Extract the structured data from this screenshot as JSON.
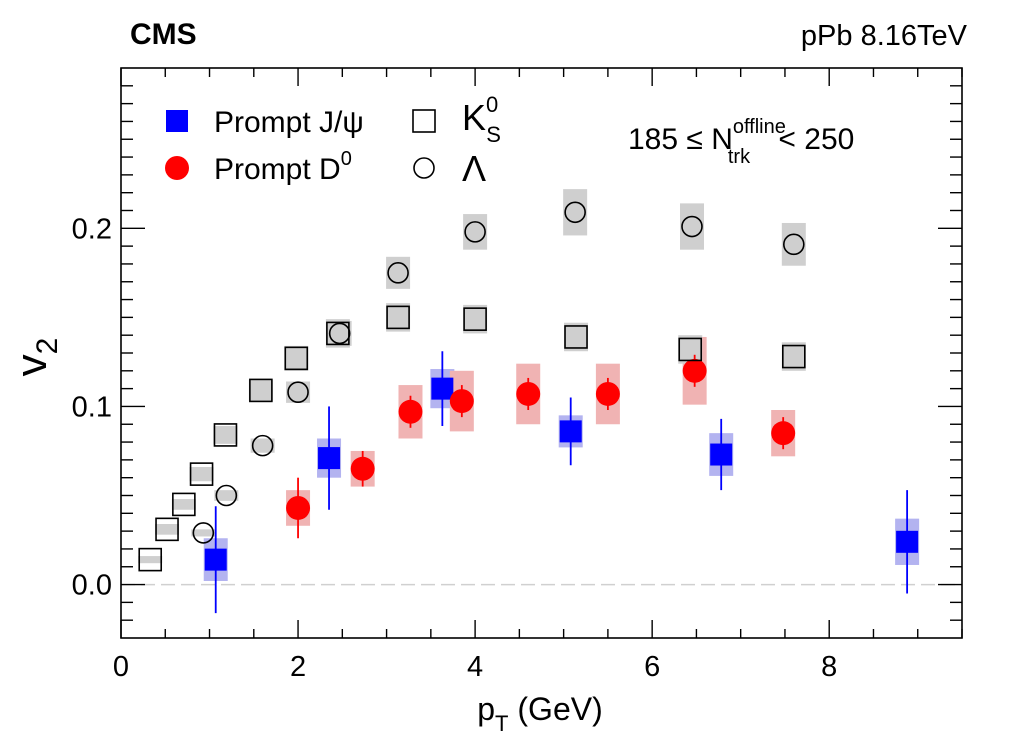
{
  "header": {
    "experiment": "CMS",
    "system": "pPb 8.16TeV"
  },
  "chart_data": {
    "type": "scatter",
    "title": "",
    "xlabel": {
      "main": "p",
      "sub": "T",
      "unit": "(GeV)"
    },
    "ylabel": {
      "main": "v",
      "sub": "2"
    },
    "xlim": [
      0,
      9.5
    ],
    "ylim": [
      -0.03,
      0.29
    ],
    "x_ticks": [
      0,
      2,
      4,
      6,
      8
    ],
    "y_ticks": [
      0.0,
      0.1,
      0.2
    ],
    "x_tick_labels": [
      "0",
      "2",
      "4",
      "6",
      "8"
    ],
    "y_tick_labels": [
      "0.0",
      "0.1",
      "0.2"
    ],
    "reference_line_y": 0.0,
    "annotation": {
      "pre": "185 ≤ N",
      "sup": "offline",
      "sub": "trk",
      "post": "< 250"
    },
    "legend": [
      {
        "series": "jpsi",
        "label": "Prompt J/ψ",
        "sup": "",
        "sub": ""
      },
      {
        "series": "d0",
        "label": "Prompt D",
        "sup": "0",
        "sub": ""
      },
      {
        "series": "ks",
        "label": "K",
        "sup": "0",
        "sub": "S"
      },
      {
        "series": "lambda",
        "label": "Λ",
        "sup": "",
        "sub": ""
      }
    ],
    "series": [
      {
        "id": "jpsi",
        "name": "Prompt J/ψ",
        "marker": "filled-square",
        "color": "#0000ff",
        "syst_color": "#b3b3f0",
        "points": [
          {
            "x": 1.07,
            "y": 0.014,
            "stat": 0.03,
            "syst": 0.012
          },
          {
            "x": 2.35,
            "y": 0.071,
            "stat": 0.029,
            "syst": 0.011
          },
          {
            "x": 3.63,
            "y": 0.11,
            "stat": 0.021,
            "syst": 0.011
          },
          {
            "x": 5.08,
            "y": 0.086,
            "stat": 0.019,
            "syst": 0.009
          },
          {
            "x": 6.78,
            "y": 0.073,
            "stat": 0.02,
            "syst": 0.012
          },
          {
            "x": 8.88,
            "y": 0.024,
            "stat": 0.029,
            "syst": 0.013
          }
        ]
      },
      {
        "id": "d0",
        "name": "Prompt D0",
        "marker": "filled-circle",
        "color": "#ff0000",
        "syst_color": "#f0b3b3",
        "points": [
          {
            "x": 2.0,
            "y": 0.043,
            "stat": 0.017,
            "syst": 0.01
          },
          {
            "x": 2.73,
            "y": 0.065,
            "stat": 0.01,
            "syst": 0.01
          },
          {
            "x": 3.27,
            "y": 0.097,
            "stat": 0.009,
            "syst": 0.015
          },
          {
            "x": 3.85,
            "y": 0.103,
            "stat": 0.009,
            "syst": 0.017
          },
          {
            "x": 4.6,
            "y": 0.107,
            "stat": 0.009,
            "syst": 0.017
          },
          {
            "x": 5.5,
            "y": 0.107,
            "stat": 0.009,
            "syst": 0.017
          },
          {
            "x": 6.48,
            "y": 0.12,
            "stat": 0.009,
            "syst": 0.019
          },
          {
            "x": 7.48,
            "y": 0.085,
            "stat": 0.009,
            "syst": 0.013
          }
        ]
      },
      {
        "id": "ks",
        "name": "K0S",
        "marker": "open-square",
        "color": "#000000",
        "syst_color": "#cfcfcf",
        "points": [
          {
            "x": 0.33,
            "y": 0.014,
            "stat": 0.0,
            "syst": 0.002
          },
          {
            "x": 0.52,
            "y": 0.031,
            "stat": 0.0,
            "syst": 0.003
          },
          {
            "x": 0.71,
            "y": 0.045,
            "stat": 0.0,
            "syst": 0.003
          },
          {
            "x": 0.91,
            "y": 0.062,
            "stat": 0.0,
            "syst": 0.004
          },
          {
            "x": 1.18,
            "y": 0.084,
            "stat": 0.0,
            "syst": 0.005
          },
          {
            "x": 1.58,
            "y": 0.109,
            "stat": 0.0,
            "syst": 0.006
          },
          {
            "x": 1.98,
            "y": 0.127,
            "stat": 0.0,
            "syst": 0.007
          },
          {
            "x": 2.45,
            "y": 0.141,
            "stat": 0.0,
            "syst": 0.008
          },
          {
            "x": 3.13,
            "y": 0.15,
            "stat": 0.0,
            "syst": 0.008
          },
          {
            "x": 4.0,
            "y": 0.149,
            "stat": 0.0,
            "syst": 0.008
          },
          {
            "x": 5.14,
            "y": 0.139,
            "stat": 0.0,
            "syst": 0.008
          },
          {
            "x": 6.43,
            "y": 0.132,
            "stat": 0.0,
            "syst": 0.008
          },
          {
            "x": 7.6,
            "y": 0.128,
            "stat": 0.0,
            "syst": 0.008
          }
        ]
      },
      {
        "id": "lambda",
        "name": "Λ",
        "marker": "open-circle",
        "color": "#000000",
        "syst_color": "#cfcfcf",
        "points": [
          {
            "x": 0.93,
            "y": 0.029,
            "stat": 0.0,
            "syst": 0.002
          },
          {
            "x": 1.19,
            "y": 0.05,
            "stat": 0.0,
            "syst": 0.003
          },
          {
            "x": 1.6,
            "y": 0.078,
            "stat": 0.0,
            "syst": 0.004
          },
          {
            "x": 2.0,
            "y": 0.108,
            "stat": 0.0,
            "syst": 0.006
          },
          {
            "x": 2.47,
            "y": 0.141,
            "stat": 0.0,
            "syst": 0.007
          },
          {
            "x": 3.13,
            "y": 0.175,
            "stat": 0.0,
            "syst": 0.009
          },
          {
            "x": 4.0,
            "y": 0.198,
            "stat": 0.0,
            "syst": 0.01
          },
          {
            "x": 5.13,
            "y": 0.209,
            "stat": 0.0,
            "syst": 0.013
          },
          {
            "x": 6.45,
            "y": 0.201,
            "stat": 0.0,
            "syst": 0.013
          },
          {
            "x": 7.6,
            "y": 0.191,
            "stat": 0.0,
            "syst": 0.012
          }
        ]
      }
    ]
  }
}
